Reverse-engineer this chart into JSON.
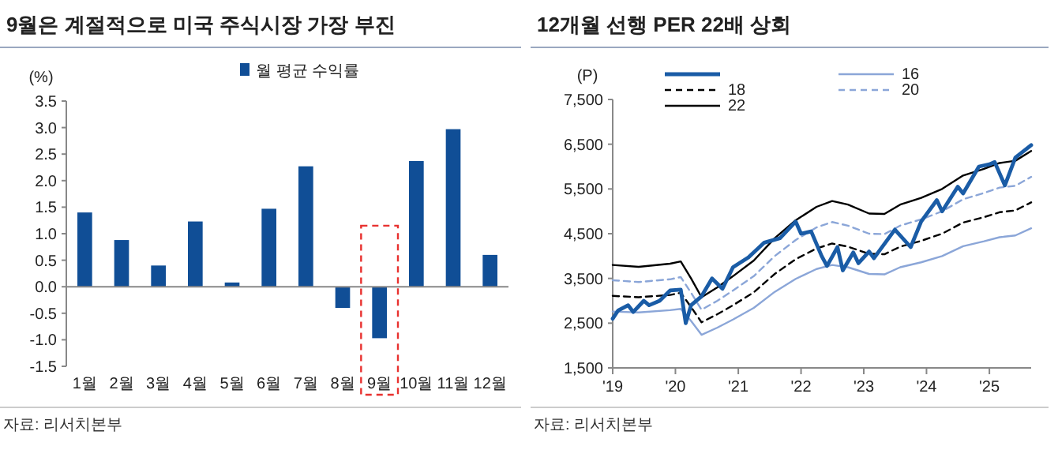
{
  "chart_data": [
    {
      "type": "bar",
      "title": "9월은 계절적으로 미국 주식시장 가장 부진",
      "ylabel": "(%)",
      "categories": [
        "1월",
        "2월",
        "3월",
        "4월",
        "5월",
        "6월",
        "7월",
        "8월",
        "9월",
        "10월",
        "11월",
        "12월"
      ],
      "series": [
        {
          "name": "월 평균 수익률",
          "color": "#104e96",
          "values": [
            1.4,
            0.88,
            0.4,
            1.23,
            0.08,
            1.47,
            2.27,
            -0.4,
            -0.97,
            2.37,
            2.97,
            0.6
          ]
        }
      ],
      "ylim": [
        -1.5,
        3.5
      ],
      "yticks": [
        {
          "value": -1.5,
          "label": "-1.5"
        },
        {
          "value": -1,
          "label": "-1.0"
        },
        {
          "value": -0.5,
          "label": "-0.5"
        },
        {
          "value": 0,
          "label": "0.0"
        },
        {
          "value": 0.5,
          "label": "0.5"
        },
        {
          "value": 1,
          "label": "1.0"
        },
        {
          "value": 1.5,
          "label": "1.5"
        },
        {
          "value": 2,
          "label": "2.0"
        },
        {
          "value": 2.5,
          "label": "2.5"
        },
        {
          "value": 3,
          "label": "3.0"
        },
        {
          "value": 3.5,
          "label": "3.5"
        }
      ],
      "legend": "top",
      "annotations": [
        "자료: 리서치본부"
      ]
    },
    {
      "type": "line",
      "title": "12개월 선행 PER 22배 상회",
      "ylabel": "(P)",
      "series": [
        {
          "color": "#1a5ca6",
          "x": [
            "2019-01",
            "2019-02",
            "2019-04",
            "2019-05",
            "2019-07",
            "2019-08",
            "2019-10",
            "2019-12",
            "2020-02",
            "2020-03",
            "2020-04",
            "2020-06",
            "2020-08",
            "2020-10",
            "2020-12",
            "2021-03",
            "2021-06",
            "2021-09",
            "2021-12",
            "2022-01",
            "2022-03",
            "2022-05",
            "2022-06",
            "2022-08",
            "2022-09",
            "2022-11",
            "2022-12",
            "2023-02",
            "2023-03",
            "2023-07",
            "2023-10",
            "2023-12",
            "2024-03",
            "2024-04",
            "2024-07",
            "2024-08",
            "2024-11",
            "2025-01",
            "2025-02",
            "2025-04",
            "2025-06",
            "2025-09"
          ],
          "values": [
            2600,
            2780,
            2900,
            2750,
            3000,
            2900,
            3000,
            3230,
            3250,
            2500,
            2900,
            3100,
            3500,
            3270,
            3750,
            3970,
            4300,
            4400,
            4770,
            4500,
            4550,
            4000,
            3780,
            4200,
            3680,
            4080,
            3840,
            4100,
            3950,
            4590,
            4200,
            4770,
            5250,
            5000,
            5550,
            5400,
            6000,
            6050,
            6100,
            5580,
            6200,
            6480
          ]
        },
        {
          "name": "16",
          "color": "#8ba6d8",
          "line_style": "solid",
          "x": [
            "2019-01",
            "2019-06",
            "2019-12",
            "2020-02",
            "2020-04",
            "2020-06",
            "2020-09",
            "2020-12",
            "2021-04",
            "2021-08",
            "2021-12",
            "2022-04",
            "2022-07",
            "2022-10",
            "2023-02",
            "2023-05",
            "2023-08",
            "2023-12",
            "2024-04",
            "2024-08",
            "2024-12",
            "2025-03",
            "2025-06",
            "2025-09"
          ],
          "values": [
            2760,
            2740,
            2790,
            2820,
            2550,
            2240,
            2400,
            2580,
            2840,
            3200,
            3490,
            3710,
            3800,
            3750,
            3600,
            3590,
            3750,
            3860,
            4000,
            4220,
            4330,
            4420,
            4460,
            4620
          ]
        },
        {
          "name": "18",
          "color": "#000000",
          "line_style": "dashed",
          "x": [
            "2019-01",
            "2019-06",
            "2019-12",
            "2020-02",
            "2020-04",
            "2020-06",
            "2020-09",
            "2020-12",
            "2021-04",
            "2021-08",
            "2021-12",
            "2022-04",
            "2022-07",
            "2022-10",
            "2023-02",
            "2023-05",
            "2023-08",
            "2023-12",
            "2024-04",
            "2024-08",
            "2024-12",
            "2025-03",
            "2025-06",
            "2025-09"
          ],
          "values": [
            3110,
            3080,
            3130,
            3180,
            2860,
            2520,
            2700,
            2900,
            3190,
            3600,
            3930,
            4170,
            4280,
            4210,
            4050,
            4040,
            4210,
            4340,
            4500,
            4750,
            4870,
            4980,
            5020,
            5200
          ]
        },
        {
          "name": "20",
          "color": "#8ba6d8",
          "line_style": "dashed",
          "x": [
            "2019-01",
            "2019-06",
            "2019-12",
            "2020-02",
            "2020-04",
            "2020-06",
            "2020-09",
            "2020-12",
            "2021-04",
            "2021-08",
            "2021-12",
            "2022-04",
            "2022-07",
            "2022-10",
            "2023-02",
            "2023-05",
            "2023-08",
            "2023-12",
            "2024-04",
            "2024-08",
            "2024-12",
            "2025-03",
            "2025-06",
            "2025-09"
          ],
          "values": [
            3460,
            3420,
            3480,
            3530,
            3180,
            2800,
            3000,
            3230,
            3550,
            4000,
            4360,
            4640,
            4760,
            4680,
            4500,
            4490,
            4680,
            4820,
            5000,
            5270,
            5410,
            5530,
            5570,
            5770
          ]
        },
        {
          "name": "22",
          "color": "#000000",
          "line_style": "solid",
          "x": [
            "2019-01",
            "2019-06",
            "2019-12",
            "2020-02",
            "2020-04",
            "2020-06",
            "2020-09",
            "2020-12",
            "2021-04",
            "2021-08",
            "2021-12",
            "2022-04",
            "2022-07",
            "2022-10",
            "2023-02",
            "2023-05",
            "2023-08",
            "2023-12",
            "2024-04",
            "2024-08",
            "2024-12",
            "2025-03",
            "2025-06",
            "2025-09"
          ],
          "values": [
            3800,
            3760,
            3830,
            3880,
            3500,
            3080,
            3300,
            3550,
            3900,
            4400,
            4800,
            5100,
            5230,
            5150,
            4950,
            4940,
            5150,
            5300,
            5500,
            5800,
            5950,
            6080,
            6130,
            6350
          ]
        }
      ],
      "xlim": [
        "2019-01",
        "2025-09"
      ],
      "xticks": [
        {
          "value": "2019-01",
          "label": "'19"
        },
        {
          "value": "2020-01",
          "label": "'20"
        },
        {
          "value": "2021-01",
          "label": "'21"
        },
        {
          "value": "2022-01",
          "label": "'22"
        },
        {
          "value": "2023-01",
          "label": "'23"
        },
        {
          "value": "2024-01",
          "label": "'24"
        },
        {
          "value": "2025-01",
          "label": "'25"
        }
      ],
      "ylim": [
        1500,
        7500
      ],
      "yticks": [
        {
          "value": 1500,
          "label": "1,500"
        },
        {
          "value": 2500,
          "label": "2,500"
        },
        {
          "value": 3500,
          "label": "3,500"
        },
        {
          "value": 4500,
          "label": "4,500"
        },
        {
          "value": 5500,
          "label": "5,500"
        },
        {
          "value": 6500,
          "label": "6,500"
        },
        {
          "value": 7500,
          "label": "7,500"
        }
      ],
      "legend": "top",
      "annotations": [
        "자료: 리서치본부"
      ]
    }
  ]
}
